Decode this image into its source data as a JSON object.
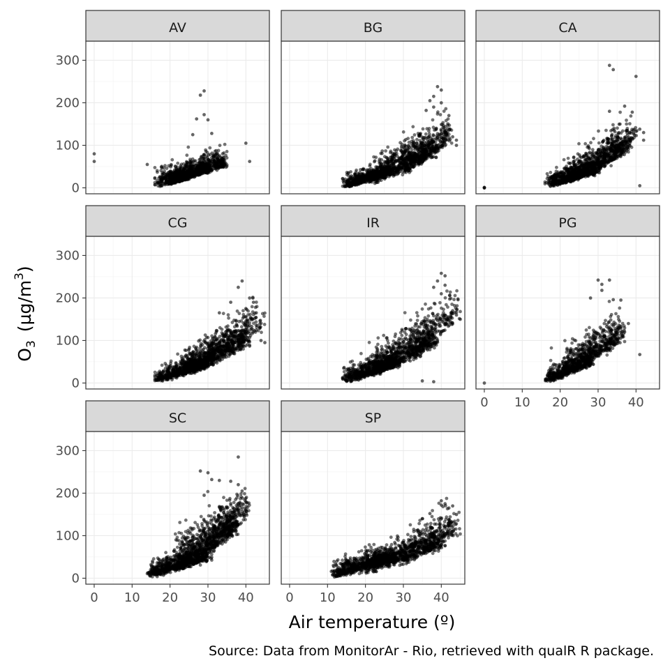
{
  "chart_data": {
    "type": "scatter",
    "facet_by": "station",
    "facets": [
      {
        "name": "AV",
        "clusters": [
          {
            "x": [
              17,
              34
            ],
            "y": [
              2,
              70
            ],
            "n": 700
          },
          {
            "x": [
              20,
              30
            ],
            "y": [
              8,
              50
            ],
            "n": 500
          }
        ],
        "outliers": [
          {
            "x": 0,
            "y": 80
          },
          {
            "x": 0,
            "y": 62
          },
          {
            "x": 14,
            "y": 55
          },
          {
            "x": 28,
            "y": 218
          },
          {
            "x": 29,
            "y": 228
          },
          {
            "x": 29,
            "y": 172
          },
          {
            "x": 27,
            "y": 162
          },
          {
            "x": 30,
            "y": 160
          },
          {
            "x": 40,
            "y": 105
          },
          {
            "x": 41,
            "y": 62
          },
          {
            "x": 26,
            "y": 125
          },
          {
            "x": 31,
            "y": 128
          }
        ]
      },
      {
        "name": "BG",
        "clusters": [
          {
            "x": [
              15,
              27
            ],
            "y": [
              2,
              45
            ],
            "n": 550
          },
          {
            "x": [
              22,
              38
            ],
            "y": [
              10,
              105
            ],
            "n": 650
          },
          {
            "x": [
              30,
              42
            ],
            "y": [
              30,
              140
            ],
            "n": 300
          }
        ],
        "outliers": [
          {
            "x": 39,
            "y": 238
          },
          {
            "x": 40,
            "y": 230
          },
          {
            "x": 38,
            "y": 215
          },
          {
            "x": 40,
            "y": 200
          },
          {
            "x": 37,
            "y": 205
          },
          {
            "x": 36,
            "y": 182
          },
          {
            "x": 42,
            "y": 170
          },
          {
            "x": 44,
            "y": 112
          },
          {
            "x": 44,
            "y": 100
          },
          {
            "x": 43,
            "y": 120
          },
          {
            "x": 38,
            "y": 190
          }
        ]
      },
      {
        "name": "CA",
        "clusters": [
          {
            "x": [
              17,
              30
            ],
            "y": [
              2,
              50
            ],
            "n": 600
          },
          {
            "x": [
              22,
              37
            ],
            "y": [
              10,
              110
            ],
            "n": 600
          },
          {
            "x": [
              30,
              40
            ],
            "y": [
              40,
              140
            ],
            "n": 200
          }
        ],
        "outliers": [
          {
            "x": 0,
            "y": 0
          },
          {
            "x": 0,
            "y": 1
          },
          {
            "x": 0,
            "y": 0
          },
          {
            "x": 33,
            "y": 288
          },
          {
            "x": 34,
            "y": 278
          },
          {
            "x": 40,
            "y": 262
          },
          {
            "x": 37,
            "y": 192
          },
          {
            "x": 33,
            "y": 180
          },
          {
            "x": 39,
            "y": 178
          },
          {
            "x": 41,
            "y": 138
          },
          {
            "x": 42,
            "y": 130
          },
          {
            "x": 42,
            "y": 112
          },
          {
            "x": 41,
            "y": 5
          }
        ]
      },
      {
        "name": "CG",
        "clusters": [
          {
            "x": [
              17,
              30
            ],
            "y": [
              2,
              55
            ],
            "n": 600
          },
          {
            "x": [
              24,
              40
            ],
            "y": [
              15,
              120
            ],
            "n": 650
          },
          {
            "x": [
              30,
              44
            ],
            "y": [
              40,
              160
            ],
            "n": 250
          }
        ],
        "outliers": [
          {
            "x": 39,
            "y": 240
          },
          {
            "x": 38,
            "y": 225
          },
          {
            "x": 41,
            "y": 200
          },
          {
            "x": 42,
            "y": 190
          },
          {
            "x": 36,
            "y": 190
          },
          {
            "x": 40,
            "y": 175
          },
          {
            "x": 44,
            "y": 100
          },
          {
            "x": 45,
            "y": 95
          },
          {
            "x": 33,
            "y": 165
          }
        ]
      },
      {
        "name": "IR",
        "clusters": [
          {
            "x": [
              15,
              28
            ],
            "y": [
              2,
              55
            ],
            "n": 600
          },
          {
            "x": [
              22,
              38
            ],
            "y": [
              15,
              120
            ],
            "n": 650
          },
          {
            "x": [
              32,
              44
            ],
            "y": [
              50,
              190
            ],
            "n": 250
          }
        ],
        "outliers": [
          {
            "x": 40,
            "y": 258
          },
          {
            "x": 41,
            "y": 252
          },
          {
            "x": 39,
            "y": 240
          },
          {
            "x": 38,
            "y": 225
          },
          {
            "x": 41,
            "y": 230
          },
          {
            "x": 40,
            "y": 210
          },
          {
            "x": 44,
            "y": 160
          },
          {
            "x": 45,
            "y": 150
          },
          {
            "x": 43,
            "y": 170
          },
          {
            "x": 35,
            "y": 5
          },
          {
            "x": 38,
            "y": 3
          }
        ]
      },
      {
        "name": "PG",
        "clusters": [
          {
            "x": [
              17,
              28
            ],
            "y": [
              2,
              60
            ],
            "n": 450
          },
          {
            "x": [
              22,
              36
            ],
            "y": [
              20,
              130
            ],
            "n": 500
          }
        ],
        "outliers": [
          {
            "x": 0,
            "y": 0
          },
          {
            "x": 30,
            "y": 242
          },
          {
            "x": 31,
            "y": 232
          },
          {
            "x": 33,
            "y": 242
          },
          {
            "x": 31,
            "y": 218
          },
          {
            "x": 34,
            "y": 196
          },
          {
            "x": 36,
            "y": 195
          },
          {
            "x": 28,
            "y": 200
          },
          {
            "x": 41,
            "y": 67
          },
          {
            "x": 38,
            "y": 140
          },
          {
            "x": 37,
            "y": 120
          }
        ]
      },
      {
        "name": "SC",
        "clusters": [
          {
            "x": [
              15,
              30
            ],
            "y": [
              2,
              60
            ],
            "n": 650
          },
          {
            "x": [
              22,
              37
            ],
            "y": [
              20,
              145
            ],
            "n": 650
          },
          {
            "x": [
              30,
              40
            ],
            "y": [
              50,
              180
            ],
            "n": 250
          }
        ],
        "outliers": [
          {
            "x": 38,
            "y": 285
          },
          {
            "x": 28,
            "y": 252
          },
          {
            "x": 30,
            "y": 248
          },
          {
            "x": 31,
            "y": 232
          },
          {
            "x": 33,
            "y": 230
          },
          {
            "x": 36,
            "y": 228
          },
          {
            "x": 38,
            "y": 220
          },
          {
            "x": 39,
            "y": 205
          },
          {
            "x": 40,
            "y": 180
          },
          {
            "x": 40,
            "y": 160
          },
          {
            "x": 29,
            "y": 195
          }
        ]
      },
      {
        "name": "SP",
        "clusters": [
          {
            "x": [
              12,
              28
            ],
            "y": [
              2,
              60
            ],
            "n": 650
          },
          {
            "x": [
              20,
              40
            ],
            "y": [
              10,
              100
            ],
            "n": 650
          },
          {
            "x": [
              30,
              44
            ],
            "y": [
              30,
              140
            ],
            "n": 250
          }
        ],
        "outliers": [
          {
            "x": 40,
            "y": 182
          },
          {
            "x": 41,
            "y": 175
          },
          {
            "x": 43,
            "y": 170
          },
          {
            "x": 44,
            "y": 150
          },
          {
            "x": 42,
            "y": 165
          },
          {
            "x": 37,
            "y": 152
          },
          {
            "x": 35,
            "y": 140
          },
          {
            "x": 40,
            "y": 172
          }
        ]
      }
    ],
    "xlabel": "Air temperature (º)",
    "ylabel_main": "O",
    "ylabel_sub": "3",
    "ylabel_unit": "(µg/m",
    "ylabel_sup": "3",
    "ylabel_close": ")",
    "caption": "Source: Data from MonitorAr - Rio, retrieved with qualR R package.",
    "x_ticks": [
      0,
      10,
      20,
      30,
      40
    ],
    "y_ticks": [
      0,
      100,
      200,
      300
    ],
    "xlim": [
      -2.2,
      46.2
    ],
    "ylim": [
      -14,
      345
    ],
    "grid": true,
    "point_color": "#000000",
    "strip_fill": "#d9d9d9",
    "panel_border": "#333333"
  }
}
